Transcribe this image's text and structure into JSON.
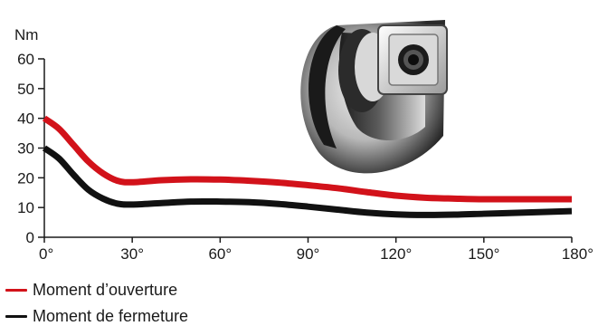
{
  "chart_data": {
    "type": "line",
    "y_unit": "Nm",
    "xlim": [
      0,
      180
    ],
    "ylim": [
      0,
      60
    ],
    "x_ticks": [
      0,
      30,
      60,
      90,
      120,
      150,
      180
    ],
    "x_tick_labels": [
      "0°",
      "30°",
      "60°",
      "90°",
      "120°",
      "150°",
      "180°"
    ],
    "y_ticks": [
      0,
      10,
      20,
      30,
      40,
      50,
      60
    ],
    "y_tick_labels": [
      "0",
      "10",
      "20",
      "30",
      "40",
      "50",
      "60"
    ],
    "grid": false,
    "legend_position": "bottom-left",
    "series": [
      {
        "name": "Moment d'ouverture",
        "color": "#d2121a",
        "x": [
          0,
          5,
          10,
          15,
          20,
          25,
          30,
          40,
          50,
          60,
          70,
          80,
          90,
          100,
          110,
          120,
          130,
          140,
          150,
          160,
          170,
          180
        ],
        "y": [
          40,
          36.5,
          31,
          25.5,
          21.5,
          19,
          18.5,
          19.2,
          19.5,
          19.4,
          19,
          18.4,
          17.5,
          16.5,
          15.2,
          14,
          13.3,
          13,
          12.8,
          12.8,
          12.8,
          12.8
        ]
      },
      {
        "name": "Moment de fermeture",
        "color": "#111111",
        "x": [
          0,
          5,
          10,
          15,
          20,
          25,
          30,
          40,
          50,
          60,
          70,
          80,
          90,
          100,
          110,
          120,
          130,
          140,
          150,
          160,
          170,
          180
        ],
        "y": [
          30,
          26.5,
          21,
          16,
          13,
          11.3,
          11,
          11.5,
          12,
          12,
          11.8,
          11.2,
          10.3,
          9.3,
          8.3,
          7.7,
          7.5,
          7.6,
          7.9,
          8.2,
          8.5,
          8.8
        ]
      }
    ]
  },
  "legend": {
    "opening_label": "Moment d’ouverture",
    "closing_label": "Moment de fermeture"
  },
  "image": {
    "icon": "hinge-product-photo-icon"
  }
}
